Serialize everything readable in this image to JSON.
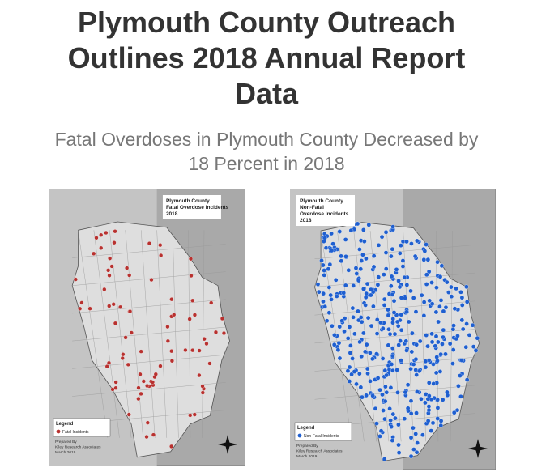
{
  "header": {
    "title_lines": [
      "Plymouth County Outreach",
      "Outlines 2018 Annual Report",
      "Data"
    ],
    "subtitle_lines": [
      "Fatal Overdoses in Plymouth County Decreased by",
      "18 Percent in 2018"
    ]
  },
  "maps": [
    {
      "title_lines": [
        "Plymouth County",
        "Fatal Overdose Incidents",
        "2018"
      ],
      "legend_title": "Legend",
      "legend_item": "Fatal Incidents",
      "credit_lines": [
        "Prepared By",
        "Kiley Research Associates",
        "March 2019"
      ],
      "dot_color": "#b8312f"
    },
    {
      "title_lines": [
        "Plymouth County",
        "Non-Fatal",
        "Overdose Incidents",
        "2018"
      ],
      "legend_title": "Legend",
      "legend_item": "Non-Fatal Incidents",
      "credit_lines": [
        "Prepared By",
        "Kiley Research Associates",
        "March 2019"
      ],
      "dot_color": "#1f5fd0"
    }
  ]
}
